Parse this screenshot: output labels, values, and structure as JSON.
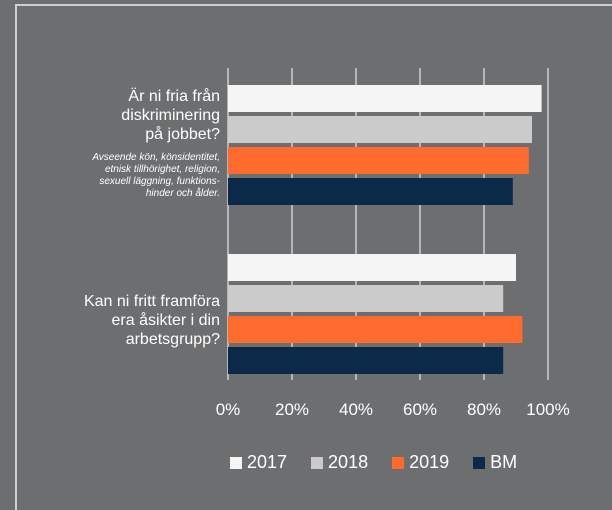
{
  "chart_data": {
    "type": "bar",
    "orientation": "horizontal",
    "categories": [
      "Är ni fria från\ndiskriminering\npå jobbet?",
      "Kan ni fritt framföra\nera åsikter i din\narbetsgrupp?"
    ],
    "category_notes": [
      "Avseende kön, könsidentitet,\netnisk tillhörighet, religion,\nsexuell läggning, funktions-\nhinder och ålder.",
      ""
    ],
    "series": [
      {
        "name": "2017",
        "color": "#f5f5f5",
        "values": [
          98,
          90
        ]
      },
      {
        "name": "2018",
        "color": "#cbcbcb",
        "values": [
          95,
          86
        ]
      },
      {
        "name": "2019",
        "color": "#ff6b2c",
        "values": [
          94,
          92
        ]
      },
      {
        "name": "BM",
        "color": "#0b2a4a",
        "values": [
          89,
          86
        ]
      }
    ],
    "xlim": [
      0,
      100
    ],
    "x_ticks": [
      "0%",
      "20%",
      "40%",
      "60%",
      "80%",
      "100%"
    ],
    "grid": true,
    "legend_position": "bottom"
  }
}
